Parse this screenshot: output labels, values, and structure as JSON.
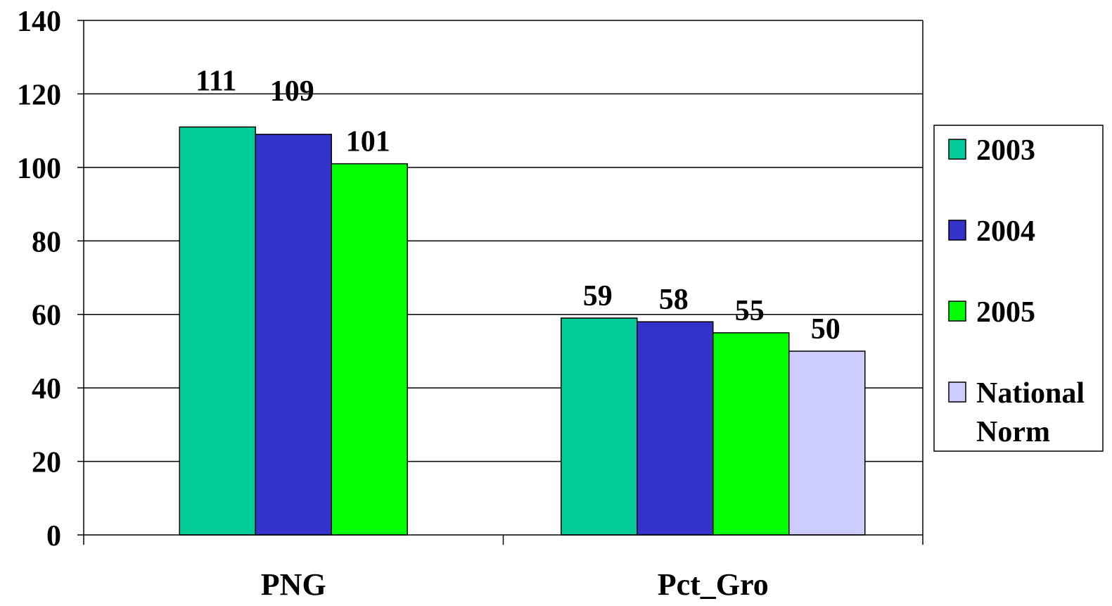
{
  "chart_data": {
    "type": "bar",
    "title": "",
    "xlabel": "",
    "ylabel": "",
    "ylim": [
      0,
      140
    ],
    "yticks": [
      0,
      20,
      40,
      60,
      80,
      100,
      120,
      140
    ],
    "grid": true,
    "legend_position": "right",
    "categories": [
      "PNG",
      "Pct_Gro"
    ],
    "series": [
      {
        "name": "2003",
        "color": "#00cc99",
        "values": [
          111,
          59
        ]
      },
      {
        "name": "2004",
        "color": "#3333cc",
        "values": [
          109,
          58
        ]
      },
      {
        "name": "2005",
        "color": "#00ff00",
        "values": [
          101,
          55
        ]
      },
      {
        "name": "National Norm",
        "name_lines": [
          "National",
          "Norm"
        ],
        "color": "#ccccff",
        "values": [
          null,
          50
        ]
      }
    ]
  }
}
